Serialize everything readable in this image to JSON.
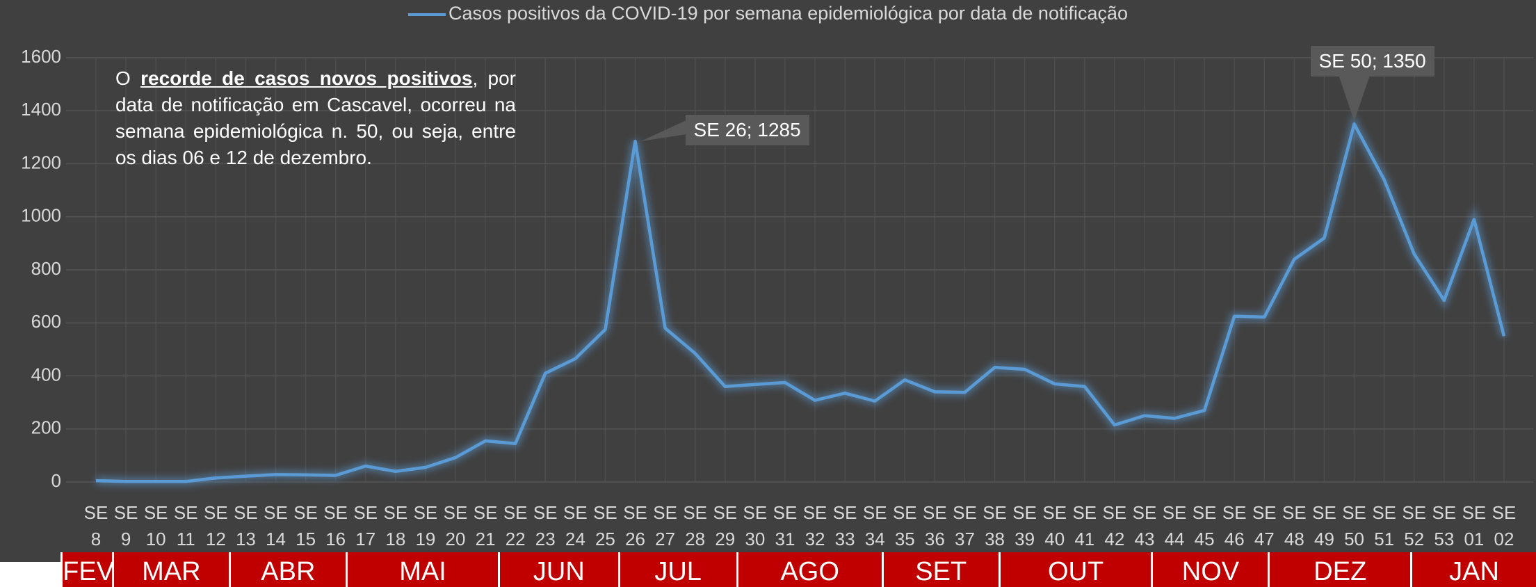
{
  "chart_data": {
    "type": "line",
    "categories": [
      "SE 8",
      "SE 9",
      "SE 10",
      "SE 11",
      "SE 12",
      "SE 13",
      "SE 14",
      "SE 15",
      "SE 16",
      "SE 17",
      "SE 18",
      "SE 19",
      "SE 20",
      "SE 21",
      "SE 22",
      "SE 23",
      "SE 24",
      "SE 25",
      "SE 26",
      "SE 27",
      "SE 28",
      "SE 29",
      "SE 30",
      "SE 31",
      "SE 32",
      "SE 33",
      "SE 34",
      "SE 35",
      "SE 36",
      "SE 37",
      "SE 38",
      "SE 39",
      "SE 40",
      "SE 41",
      "SE 42",
      "SE 43",
      "SE 44",
      "SE 45",
      "SE 46",
      "SE 47",
      "SE 48",
      "SE 49",
      "SE 50",
      "SE 51",
      "SE 52",
      "SE 53",
      "SE 01",
      "SE 02"
    ],
    "series": [
      {
        "name": "Casos positivos da COVID-19 por semana epidemiológica por data de notificação",
        "color": "#5b9bd5",
        "values": [
          5,
          2,
          2,
          2,
          15,
          22,
          28,
          27,
          25,
          60,
          40,
          55,
          92,
          155,
          145,
          410,
          465,
          575,
          1285,
          580,
          485,
          360,
          368,
          375,
          308,
          335,
          305,
          385,
          340,
          338,
          432,
          425,
          370,
          360,
          215,
          250,
          240,
          270,
          625,
          622,
          840,
          920,
          1350,
          1140,
          860,
          685,
          990,
          550
        ],
        "value_labels": [
          null,
          null,
          null,
          null,
          null,
          null,
          null,
          null,
          null,
          null,
          null,
          null,
          null,
          null,
          null,
          null,
          null,
          null,
          "SE 26; 1285",
          null,
          null,
          null,
          null,
          null,
          null,
          null,
          null,
          null,
          null,
          null,
          null,
          null,
          null,
          null,
          null,
          null,
          null,
          null,
          null,
          null,
          null,
          null,
          "SE 50; 1350",
          null,
          null,
          null,
          null,
          null
        ]
      }
    ],
    "ylim": [
      0,
      1600
    ],
    "yticks": [
      0,
      200,
      400,
      600,
      800,
      1000,
      1200,
      1400,
      1600
    ],
    "grid": true,
    "months": [
      "FEV",
      "MAR",
      "ABR",
      "MAI",
      "JUN",
      "JUL",
      "AGO",
      "SET",
      "OUT",
      "NOV",
      "DEZ",
      "JAN"
    ],
    "annotation": [
      "O ",
      "recorde de casos novos positivos",
      ", por data de notificação em Cascavel, ocorreu na semana epidemiológica n. 50, ou seja, entre os dias 06 e 12 de dezembro."
    ]
  }
}
